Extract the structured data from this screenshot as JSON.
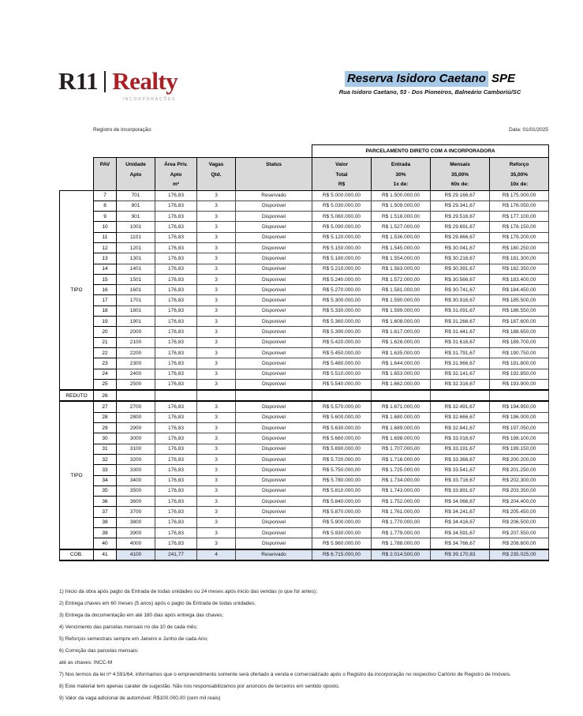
{
  "colors": {
    "logo_red": "#b01e24",
    "title_highlight": "#a6c9e8",
    "header_bg": "#d9d9d9",
    "cob_row_bg": "#dce6f2"
  },
  "logo": {
    "r11": "R11",
    "separator": "|",
    "realty": "Realty",
    "subtext": "INCORPORAÇÕES"
  },
  "header": {
    "title_highlight": "Reserva Isidoro Caetano",
    "title_suffix": " SPE",
    "address": "Rua Isidoro Caetano, 53 - Dos Pioneiros, Balneário Camboriú/SC"
  },
  "meta": {
    "registro_label": "Registro de Incorporação:",
    "date_label": "Data: 01/01/2025"
  },
  "table": {
    "banner": "PARCELAMENTO DIRETO COM A INCORPORADORA",
    "row_keys": [
      "pav",
      "unidade",
      "area",
      "vagas",
      "status",
      "valor",
      "entrada",
      "mensais",
      "reforco"
    ],
    "columns": [
      {
        "key": "pav",
        "lines": [
          "PAV"
        ]
      },
      {
        "key": "unidade",
        "lines": [
          "Unidade",
          "Apto"
        ]
      },
      {
        "key": "area",
        "lines": [
          "Área Priv.",
          "Apto",
          "m²"
        ]
      },
      {
        "key": "vagas",
        "lines": [
          "Vagas",
          "Qtd."
        ]
      },
      {
        "key": "status",
        "lines": [
          "Status"
        ]
      },
      {
        "key": "valor",
        "lines": [
          "Valor",
          "Total",
          "R$"
        ]
      },
      {
        "key": "entrada",
        "lines": [
          "Entrada",
          "30%",
          "1x de:"
        ]
      },
      {
        "key": "mensais",
        "lines": [
          "Mensais",
          "35,00%",
          "60x de:"
        ]
      },
      {
        "key": "reforco",
        "lines": [
          "Reforço",
          "35,00%",
          "10x de:"
        ]
      }
    ],
    "groups": [
      {
        "label": "TIPO",
        "highlight": false,
        "rows": [
          {
            "pav": "7",
            "unidade": "701",
            "area": "176,83",
            "vagas": "3",
            "status": "Reservado",
            "valor": "R$ 5.000.000,00",
            "entrada": "R$ 1.500.000,00",
            "mensais": "R$ 29.166,67",
            "reforco": "R$ 175.000,00"
          },
          {
            "pav": "8",
            "unidade": "801",
            "area": "176,83",
            "vagas": "3",
            "status": "Disponivel",
            "valor": "R$ 5.030.000,00",
            "entrada": "R$ 1.509.000,00",
            "mensais": "R$ 29.341,67",
            "reforco": "R$ 176.050,00"
          },
          {
            "pav": "9",
            "unidade": "901",
            "area": "176,83",
            "vagas": "3",
            "status": "Disponivel",
            "valor": "R$ 5.060.000,00",
            "entrada": "R$ 1.518.000,00",
            "mensais": "R$ 29.516,67",
            "reforco": "R$ 177.100,00"
          },
          {
            "pav": "10",
            "unidade": "1001",
            "area": "176,83",
            "vagas": "3",
            "status": "Disponivel",
            "valor": "R$ 5.090.000,00",
            "entrada": "R$ 1.527.000,00",
            "mensais": "R$ 29.691,67",
            "reforco": "R$ 178.150,00"
          },
          {
            "pav": "11",
            "unidade": "1101",
            "area": "176,83",
            "vagas": "3",
            "status": "Disponivel",
            "valor": "R$ 5.120.000,00",
            "entrada": "R$ 1.536.000,00",
            "mensais": "R$ 29.866,67",
            "reforco": "R$ 179.200,00"
          },
          {
            "pav": "12",
            "unidade": "1201",
            "area": "176,83",
            "vagas": "3",
            "status": "Disponivel",
            "valor": "R$ 5.150.000,00",
            "entrada": "R$ 1.545.000,00",
            "mensais": "R$ 30.041,67",
            "reforco": "R$ 180.250,00"
          },
          {
            "pav": "13",
            "unidade": "1301",
            "area": "176,83",
            "vagas": "3",
            "status": "Disponivel",
            "valor": "R$ 5.180.000,00",
            "entrada": "R$ 1.554.000,00",
            "mensais": "R$ 30.216,67",
            "reforco": "R$ 181.300,00"
          },
          {
            "pav": "14",
            "unidade": "1401",
            "area": "176,83",
            "vagas": "3",
            "status": "Disponivel",
            "valor": "R$ 5.210.000,00",
            "entrada": "R$ 1.563.000,00",
            "mensais": "R$ 30.391,67",
            "reforco": "R$ 182.350,00"
          },
          {
            "pav": "15",
            "unidade": "1501",
            "area": "176,83",
            "vagas": "3",
            "status": "Disponivel",
            "valor": "R$ 5.240.000,00",
            "entrada": "R$ 1.572.000,00",
            "mensais": "R$ 30.566,67",
            "reforco": "R$ 183.400,00"
          },
          {
            "pav": "16",
            "unidade": "1601",
            "area": "176,83",
            "vagas": "3",
            "status": "Disponivel",
            "valor": "R$ 5.270.000,00",
            "entrada": "R$ 1.581.000,00",
            "mensais": "R$ 30.741,67",
            "reforco": "R$ 184.450,00"
          },
          {
            "pav": "17",
            "unidade": "1701",
            "area": "176,83",
            "vagas": "3",
            "status": "Disponivel",
            "valor": "R$ 5.300.000,00",
            "entrada": "R$ 1.590.000,00",
            "mensais": "R$ 30.916,67",
            "reforco": "R$ 185.500,00"
          },
          {
            "pav": "18",
            "unidade": "1801",
            "area": "176,83",
            "vagas": "3",
            "status": "Disponivel",
            "valor": "R$ 5.330.000,00",
            "entrada": "R$ 1.599.000,00",
            "mensais": "R$ 31.091,67",
            "reforco": "R$ 186.550,00"
          },
          {
            "pav": "19",
            "unidade": "1901",
            "area": "176,83",
            "vagas": "3",
            "status": "Disponivel",
            "valor": "R$ 5.360.000,00",
            "entrada": "R$ 1.608.000,00",
            "mensais": "R$ 31.266,67",
            "reforco": "R$ 187.600,00"
          },
          {
            "pav": "20",
            "unidade": "2000",
            "area": "176,83",
            "vagas": "3",
            "status": "Disponivel",
            "valor": "R$ 5.390.000,00",
            "entrada": "R$ 1.617.000,00",
            "mensais": "R$ 31.441,67",
            "reforco": "R$ 188.650,00"
          },
          {
            "pav": "21",
            "unidade": "2100",
            "area": "176,83",
            "vagas": "3",
            "status": "Disponivel",
            "valor": "R$ 5.420.000,00",
            "entrada": "R$ 1.626.000,00",
            "mensais": "R$ 31.616,67",
            "reforco": "R$ 189.700,00"
          },
          {
            "pav": "22",
            "unidade": "2200",
            "area": "176,83",
            "vagas": "3",
            "status": "Disponivel",
            "valor": "R$ 5.450.000,00",
            "entrada": "R$ 1.635.000,00",
            "mensais": "R$ 31.791,67",
            "reforco": "R$ 190.750,00"
          },
          {
            "pav": "23",
            "unidade": "2300",
            "area": "176,83",
            "vagas": "3",
            "status": "Disponivel",
            "valor": "R$ 5.480.000,00",
            "entrada": "R$ 1.644.000,00",
            "mensais": "R$ 31.966,67",
            "reforco": "R$ 191.800,00"
          },
          {
            "pav": "24",
            "unidade": "2400",
            "area": "176,83",
            "vagas": "3",
            "status": "Disponivel",
            "valor": "R$ 5.510.000,00",
            "entrada": "R$ 1.653.000,00",
            "mensais": "R$ 32.141,67",
            "reforco": "R$ 192.850,00"
          },
          {
            "pav": "25",
            "unidade": "2500",
            "area": "176,83",
            "vagas": "3",
            "status": "Disponivel",
            "valor": "R$ 5.540.000,00",
            "entrada": "R$ 1.662.000,00",
            "mensais": "R$ 32.316,67",
            "reforco": "R$ 193.900,00"
          }
        ]
      },
      {
        "label": "REDUTO",
        "highlight": false,
        "rows": [
          {
            "pav": "26",
            "unidade": "",
            "area": "",
            "vagas": "",
            "status": "",
            "valor": "",
            "entrada": "",
            "mensais": "",
            "reforco": ""
          }
        ]
      },
      {
        "label": "TIPO",
        "highlight": false,
        "rows": [
          {
            "pav": "27",
            "unidade": "2700",
            "area": "176,83",
            "vagas": "3",
            "status": "Disponivel",
            "valor": "R$ 5.570.000,00",
            "entrada": "R$ 1.671.000,00",
            "mensais": "R$ 32.491,67",
            "reforco": "R$ 194.950,00"
          },
          {
            "pav": "28",
            "unidade": "2800",
            "area": "176,83",
            "vagas": "3",
            "status": "Disponivel",
            "valor": "R$ 5.600.000,00",
            "entrada": "R$ 1.680.000,00",
            "mensais": "R$ 32.666,67",
            "reforco": "R$ 196.000,00"
          },
          {
            "pav": "29",
            "unidade": "2900",
            "area": "176,83",
            "vagas": "3",
            "status": "Disponivel",
            "valor": "R$ 5.630.000,00",
            "entrada": "R$ 1.689.000,00",
            "mensais": "R$ 32.841,67",
            "reforco": "R$ 197.050,00"
          },
          {
            "pav": "30",
            "unidade": "3000",
            "area": "176,83",
            "vagas": "3",
            "status": "Disponivel",
            "valor": "R$ 5.660.000,00",
            "entrada": "R$ 1.698.000,00",
            "mensais": "R$ 33.016,67",
            "reforco": "R$ 198.100,00"
          },
          {
            "pav": "31",
            "unidade": "3100",
            "area": "176,83",
            "vagas": "3",
            "status": "Disponivel",
            "valor": "R$ 5.690.000,00",
            "entrada": "R$ 1.707.000,00",
            "mensais": "R$ 33.191,67",
            "reforco": "R$ 199.150,00"
          },
          {
            "pav": "32",
            "unidade": "3200",
            "area": "176,83",
            "vagas": "3",
            "status": "Disponivel",
            "valor": "R$ 5.720.000,00",
            "entrada": "R$ 1.716.000,00",
            "mensais": "R$ 33.366,67",
            "reforco": "R$ 200.200,00"
          },
          {
            "pav": "33",
            "unidade": "3300",
            "area": "176,83",
            "vagas": "3",
            "status": "Disponivel",
            "valor": "R$ 5.750.000,00",
            "entrada": "R$ 1.725.000,00",
            "mensais": "R$ 33.541,67",
            "reforco": "R$ 201.250,00"
          },
          {
            "pav": "34",
            "unidade": "3400",
            "area": "176,83",
            "vagas": "3",
            "status": "Disponivel",
            "valor": "R$ 5.780.000,00",
            "entrada": "R$ 1.734.000,00",
            "mensais": "R$ 33.716,67",
            "reforco": "R$ 202.300,00"
          },
          {
            "pav": "35",
            "unidade": "3500",
            "area": "176,83",
            "vagas": "3",
            "status": "Disponivel",
            "valor": "R$ 5.810.000,00",
            "entrada": "R$ 1.743.000,00",
            "mensais": "R$ 33.891,67",
            "reforco": "R$ 203.350,00"
          },
          {
            "pav": "36",
            "unidade": "3600",
            "area": "176,83",
            "vagas": "3",
            "status": "Disponivel",
            "valor": "R$ 5.840.000,00",
            "entrada": "R$ 1.752.000,00",
            "mensais": "R$ 34.066,67",
            "reforco": "R$ 204.400,00"
          },
          {
            "pav": "37",
            "unidade": "3700",
            "area": "176,83",
            "vagas": "3",
            "status": "Disponivel",
            "valor": "R$ 5.870.000,00",
            "entrada": "R$ 1.761.000,00",
            "mensais": "R$ 34.241,67",
            "reforco": "R$ 205.450,00"
          },
          {
            "pav": "38",
            "unidade": "3800",
            "area": "176,83",
            "vagas": "3",
            "status": "Disponivel",
            "valor": "R$ 5.900.000,00",
            "entrada": "R$ 1.770.000,00",
            "mensais": "R$ 34.416,67",
            "reforco": "R$ 206.500,00"
          },
          {
            "pav": "39",
            "unidade": "3900",
            "area": "176,83",
            "vagas": "3",
            "status": "Disponivel",
            "valor": "R$ 5.930.000,00",
            "entrada": "R$ 1.779.000,00",
            "mensais": "R$ 34.591,67",
            "reforco": "R$ 207.550,00"
          },
          {
            "pav": "40",
            "unidade": "4000",
            "area": "176,83",
            "vagas": "3",
            "status": "Disponivel",
            "valor": "R$ 5.960.000,00",
            "entrada": "R$ 1.788.000,00",
            "mensais": "R$ 34.766,67",
            "reforco": "R$ 208.600,00"
          }
        ]
      },
      {
        "label": "COB.",
        "highlight": true,
        "rows": [
          {
            "pav": "41",
            "unidade": "4100",
            "area": "241,77",
            "vagas": "4",
            "status": "Reservado",
            "valor": "R$ 6.715.000,00",
            "entrada": "R$ 2.014.500,00",
            "mensais": "R$ 39.170,83",
            "reforco": "R$ 235.025,00"
          }
        ]
      }
    ]
  },
  "notes": [
    "1) Inicio da obra após pagto da Entrada de todas unidades ou 24 meses após inicio das vendas (o que for antes);",
    "2) Entrega chaves em 60 meses (5 anos) após o pagto da Entrada de todas unidades;",
    "3) Entrega da documentação em até 180 dias após entrega das chaves;",
    "4) Vencimento das parcelas mensais no dia 10 de cada mês;",
    "5) Reforços semestrais sempre em Janeiro e Junho de cada Ano;",
    "6) Correção das parcelas mensais:",
    "até as chaves: INCC-M",
    "7) Nos termos da lei nº 4.591/64, informamos que o empreendimento somente será ofertado à venda e comercializado após o Registro da incorporação no respectivo Cartório de Registro de Imóveis.",
    "8) Este material tem apenas carater de sugestão. Não nos responsabilizamos por anúncios de terceiros em sentido oposto.",
    "9) Valor da vaga adicional de automóvel: R$100.000,00 (cem mil reais)"
  ]
}
